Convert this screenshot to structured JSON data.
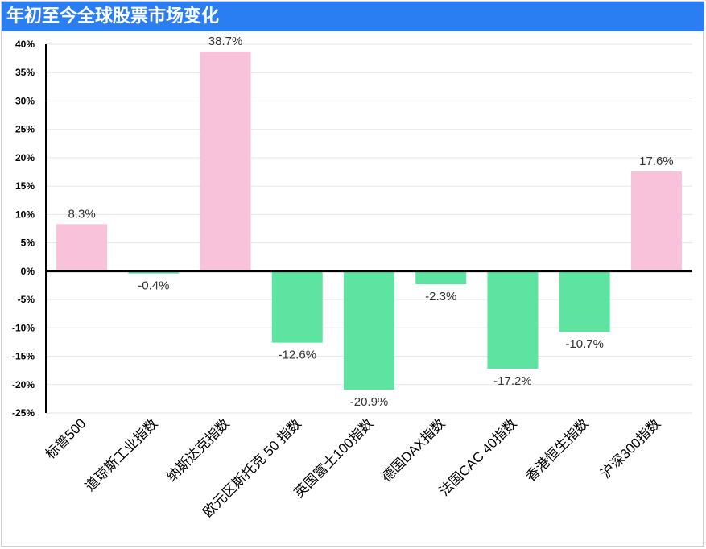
{
  "title": "年初至今全球股票市场变化",
  "chart_data": {
    "type": "bar",
    "categories": [
      "标普500",
      "道琼斯工业指数",
      "纳斯达克指数",
      "欧元区斯托克 50 指数",
      "英国富士100指数",
      "德国DAX指数",
      "法国CAC 40指数",
      "香港恒生指数",
      "沪深300指数"
    ],
    "values": [
      8.3,
      -0.4,
      38.7,
      -12.6,
      -20.9,
      -2.3,
      -17.2,
      -10.7,
      17.6
    ],
    "value_labels": [
      "8.3%",
      "-0.4%",
      "38.7%",
      "-12.6%",
      "-20.9%",
      "-2.3%",
      "-17.2%",
      "-10.7%",
      "17.6%"
    ],
    "ylim": [
      -25,
      40
    ],
    "yticks": [
      40,
      35,
      30,
      25,
      20,
      15,
      10,
      5,
      0,
      -5,
      -10,
      -15,
      -20,
      -25
    ],
    "ytick_labels": [
      "40%",
      "35%",
      "30%",
      "25%",
      "20%",
      "15%",
      "10%",
      "5%",
      "0%",
      "-5%",
      "-10%",
      "-15%",
      "-20%",
      "-25%"
    ],
    "xlabel": "",
    "ylabel": "",
    "grid": true,
    "colors": {
      "positive": "#f7c2da",
      "negative": "#5ee4a0",
      "axis": "#000000",
      "grid": "#e6e6e6"
    }
  }
}
